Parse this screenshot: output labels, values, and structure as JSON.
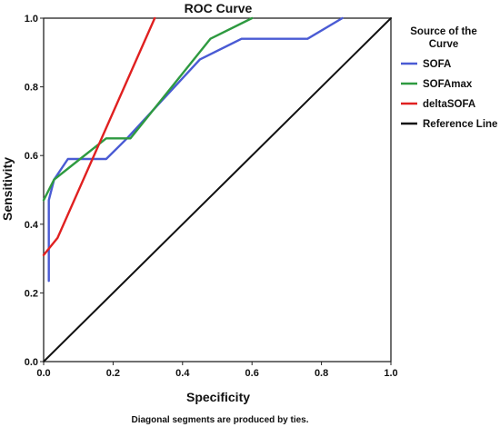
{
  "chart_data": {
    "type": "line",
    "title": "ROC Curve",
    "xlabel": "Specificity",
    "ylabel": "Sensitivity",
    "xlim": [
      0,
      1
    ],
    "ylim": [
      0,
      1
    ],
    "xticks": [
      "0.0",
      "0.2",
      "0.4",
      "0.6",
      "0.8",
      "1.0"
    ],
    "yticks": [
      "0.0",
      "0.2",
      "0.4",
      "0.6",
      "0.8",
      "1.0"
    ],
    "grid": false,
    "legend_title": "Source of the Curve",
    "legend_position": "right",
    "footnote": "Diagonal segments are produced by ties.",
    "series": [
      {
        "name": "SOFA",
        "color": "#4a5bd4",
        "points": [
          [
            0.015,
            0.235
          ],
          [
            0.015,
            0.47
          ],
          [
            0.03,
            0.53
          ],
          [
            0.07,
            0.59
          ],
          [
            0.18,
            0.59
          ],
          [
            0.24,
            0.65
          ],
          [
            0.45,
            0.88
          ],
          [
            0.57,
            0.94
          ],
          [
            0.76,
            0.94
          ],
          [
            0.86,
            1.0
          ]
        ]
      },
      {
        "name": "SOFAmax",
        "color": "#2e9a40",
        "points": [
          [
            0.0,
            0.47
          ],
          [
            0.03,
            0.53
          ],
          [
            0.08,
            0.57
          ],
          [
            0.18,
            0.65
          ],
          [
            0.25,
            0.65
          ],
          [
            0.48,
            0.94
          ],
          [
            0.6,
            1.0
          ]
        ]
      },
      {
        "name": "deltaSOFA",
        "color": "#e02020",
        "points": [
          [
            0.0,
            0.31
          ],
          [
            0.04,
            0.36
          ],
          [
            0.32,
            1.0
          ]
        ]
      },
      {
        "name": "Reference Line",
        "color": "#111111",
        "points": [
          [
            0,
            0
          ],
          [
            1,
            1
          ]
        ]
      }
    ]
  }
}
